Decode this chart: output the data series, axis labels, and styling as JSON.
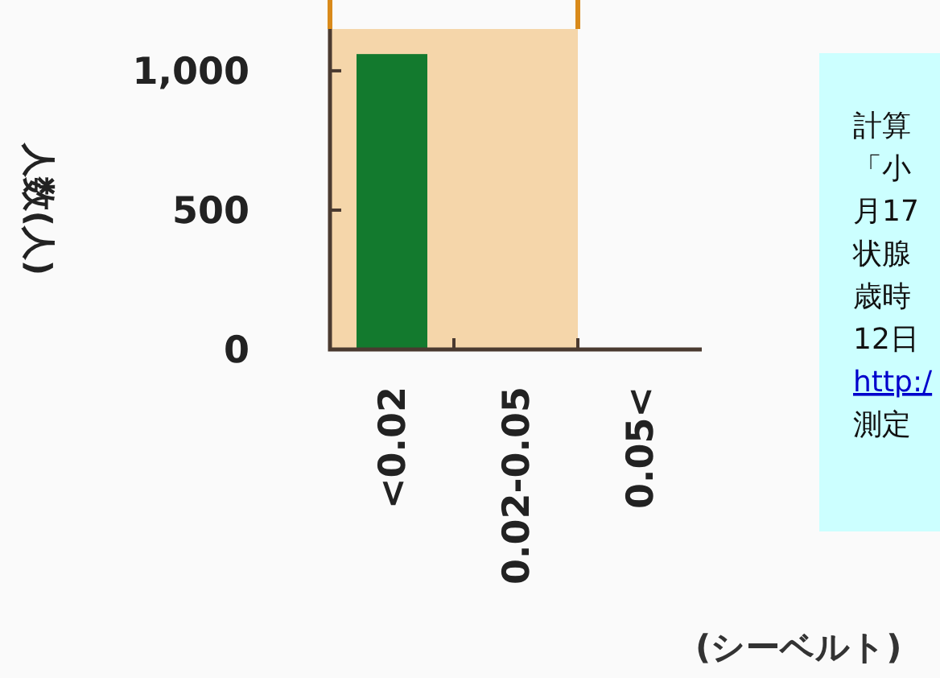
{
  "chart_data": {
    "type": "bar",
    "ylabel": "人数(人)",
    "xlabel": "(シーベルト)",
    "categories": [
      "<0.02",
      "0.02-0.05",
      "0.05<"
    ],
    "values": [
      1060,
      0,
      0
    ],
    "color": "#137a2e",
    "ylim": [
      0,
      1150
    ],
    "yticks": [
      0,
      500,
      {
        "value": 1000,
        "label": "1,000"
      }
    ],
    "bands": [
      {
        "axis": "x",
        "from": "<0.02",
        "to": "0.02-0.05",
        "color": "#f5d6aa"
      }
    ],
    "annotations": [
      "計算",
      "「小",
      "月17",
      "状腺",
      "歳時",
      "12日",
      "http:/",
      "測定"
    ]
  }
}
